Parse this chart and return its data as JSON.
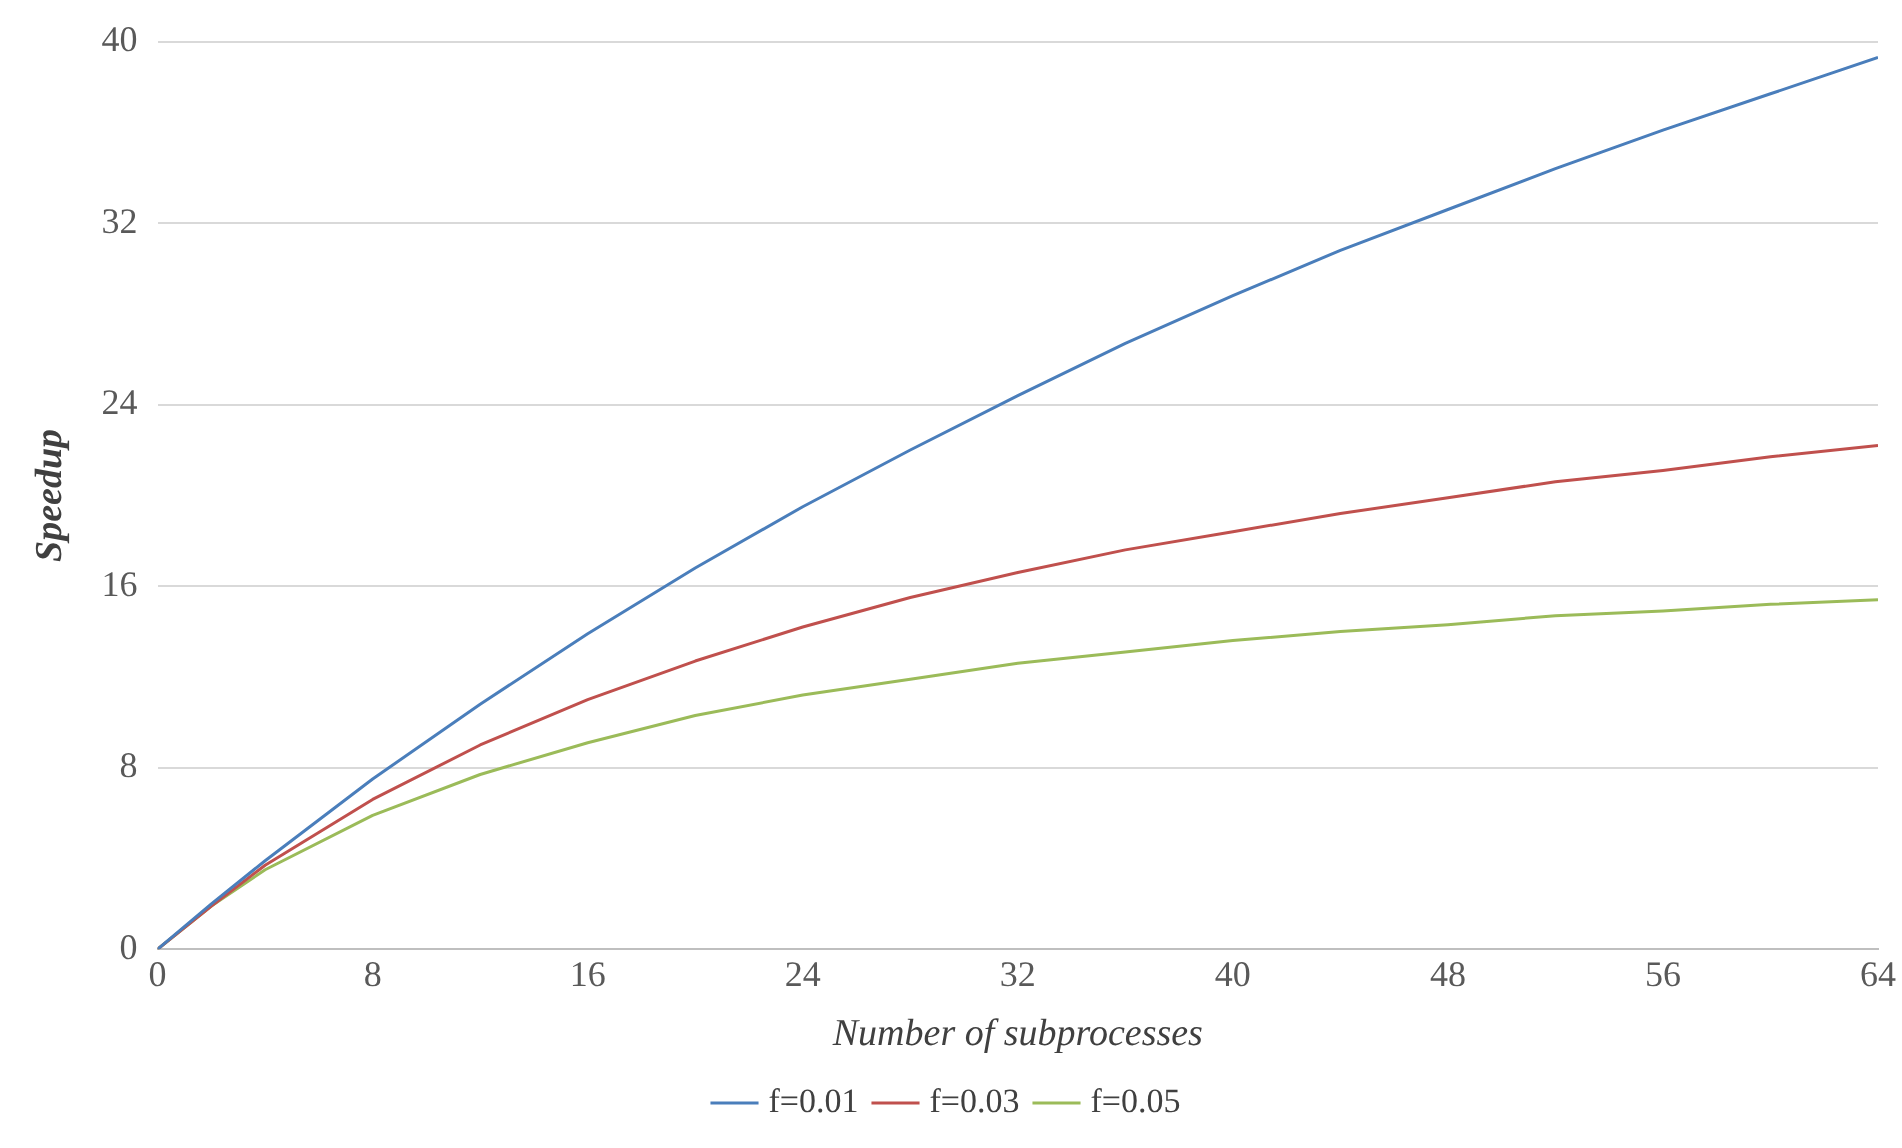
{
  "chart_data": {
    "type": "line",
    "xlabel": "Number of subprocesses",
    "ylabel": "Speedup",
    "x": [
      0,
      2,
      4,
      8,
      12,
      16,
      20,
      24,
      28,
      32,
      36,
      40,
      44,
      48,
      52,
      56,
      60,
      64
    ],
    "series": [
      {
        "name": "f=0.01",
        "color": "#4a7ebb",
        "values": [
          0,
          2.0,
          3.9,
          7.5,
          10.8,
          13.9,
          16.8,
          19.5,
          22.0,
          24.4,
          26.7,
          28.8,
          30.8,
          32.6,
          34.4,
          36.1,
          37.7,
          39.3
        ]
      },
      {
        "name": "f=0.03",
        "color": "#c0504d",
        "values": [
          0,
          1.9,
          3.7,
          6.6,
          9.0,
          11.0,
          12.7,
          14.2,
          15.5,
          16.6,
          17.6,
          18.4,
          19.2,
          19.9,
          20.6,
          21.1,
          21.7,
          22.2
        ]
      },
      {
        "name": "f=0.05",
        "color": "#9bbb59",
        "values": [
          0,
          1.9,
          3.5,
          5.9,
          7.7,
          9.1,
          10.3,
          11.2,
          11.9,
          12.6,
          13.1,
          13.6,
          14.0,
          14.3,
          14.7,
          14.9,
          15.2,
          15.4
        ]
      }
    ],
    "xlim": [
      0,
      64
    ],
    "xticks": [
      0,
      8,
      16,
      24,
      32,
      40,
      48,
      56,
      64
    ],
    "ylim": [
      0,
      40
    ],
    "yticks": [
      0,
      8,
      16,
      24,
      32,
      40
    ],
    "grid": "y",
    "legend": "bottom",
    "marker": "none",
    "line_style": "solid"
  }
}
